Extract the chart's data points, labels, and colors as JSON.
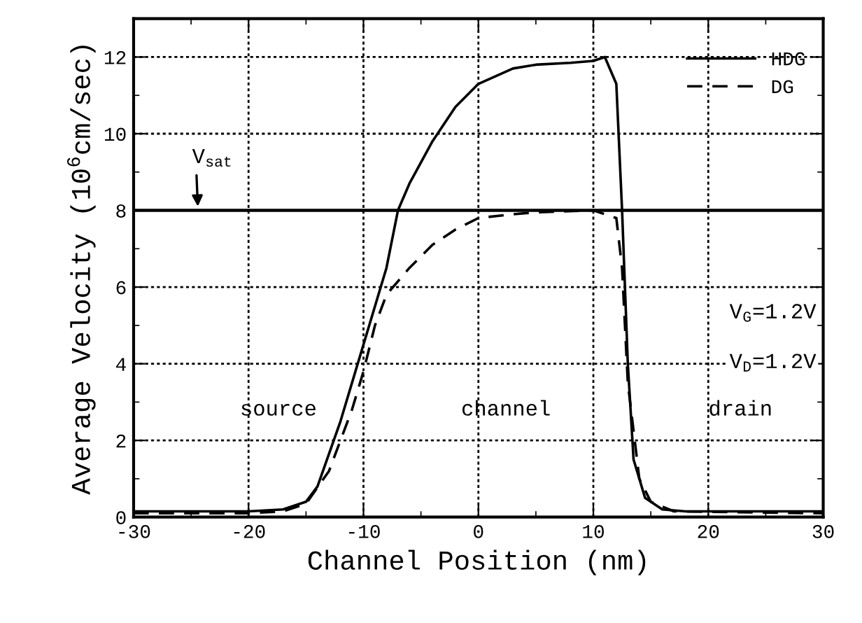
{
  "chart_data": {
    "type": "line",
    "xlabel": "Channel Position (nm)",
    "ylabel": "Average Velocity (10$^{6}$cm/sec)",
    "xlim": [
      -30,
      30
    ],
    "ylim": [
      0,
      13
    ],
    "xticks": [
      -30,
      -20,
      -10,
      0,
      10,
      20,
      30
    ],
    "yticks": [
      0,
      2,
      4,
      6,
      8,
      10,
      12
    ],
    "grid": true,
    "legend": "top right",
    "series": [
      {
        "name": "HDG",
        "color": "#000000",
        "line_style": "solid",
        "x": [
          -30,
          -20,
          -17,
          -15,
          -14,
          -12,
          -10,
          -8,
          -7,
          -6,
          -4,
          -2,
          0,
          3,
          5,
          8,
          10,
          11,
          12,
          12.5,
          13,
          13.5,
          14.5,
          16,
          18,
          30
        ],
        "values": [
          0.15,
          0.15,
          0.2,
          0.4,
          0.8,
          2.5,
          4.5,
          6.5,
          8.0,
          8.7,
          9.8,
          10.7,
          11.3,
          11.7,
          11.8,
          11.85,
          11.9,
          12.0,
          11.3,
          8.0,
          4.0,
          1.5,
          0.5,
          0.2,
          0.15,
          0.15
        ]
      },
      {
        "name": "DG",
        "color": "#000000",
        "line_style": "dashed",
        "x": [
          -30,
          -20,
          -17,
          -15,
          -13,
          -11,
          -10,
          -9,
          -8,
          -6,
          -4,
          -2,
          0,
          3,
          5,
          10,
          12,
          12.5,
          13,
          14,
          15,
          17,
          30
        ],
        "values": [
          0.1,
          0.1,
          0.15,
          0.35,
          1.2,
          2.8,
          3.8,
          5.0,
          5.8,
          6.5,
          7.1,
          7.5,
          7.8,
          7.9,
          7.95,
          8.0,
          7.8,
          6.5,
          3.5,
          1.0,
          0.4,
          0.15,
          0.1
        ]
      }
    ],
    "ref_lines": [
      {
        "axis": "y",
        "value": 8,
        "color": "#000000",
        "line_style": "solid"
      }
    ],
    "annotations": [
      {
        "text": "V$_{sat}$",
        "x": -24.4,
        "y": 8
      },
      "V$_{G}$=1.2V",
      "V$_{D}$=1.2V",
      "source",
      "channel",
      "drain"
    ]
  }
}
